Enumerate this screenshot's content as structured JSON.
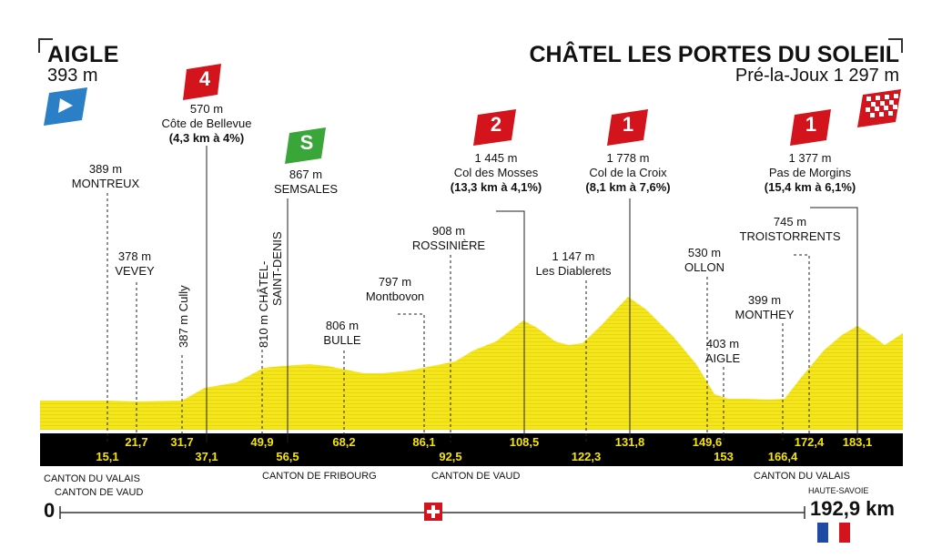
{
  "start": {
    "name": "AIGLE",
    "altitude": "393 m"
  },
  "finish": {
    "name": "CHÂTEL LES PORTES DU SOLEIL",
    "altitude": "Pré-la-Joux 1 297 m"
  },
  "climbs": [
    {
      "category": "4",
      "alt": "570 m",
      "name": "Côte de Bellevue",
      "detail": "(4,3 km à 4%)"
    },
    {
      "category": "2",
      "alt": "1 445 m",
      "name": "Col des Mosses",
      "detail": "(13,3 km à 4,1%)"
    },
    {
      "category": "1",
      "alt": "1 778 m",
      "name": "Col de la Croix",
      "detail": "(8,1 km à 7,6%)"
    },
    {
      "category": "1",
      "alt": "1 377 m",
      "name": "Pas de Morgins",
      "detail": "(15,4 km à 6,1%)"
    }
  ],
  "sprint": {
    "symbol": "S",
    "alt": "867 m",
    "name": "SEMSALES"
  },
  "places": [
    {
      "alt": "389 m",
      "name": "MONTREUX"
    },
    {
      "alt": "378 m",
      "name": "VEVEY"
    },
    {
      "alt": "387 m",
      "name": "Cully"
    },
    {
      "alt": "810 m",
      "name": "CHÂTEL-",
      "name2": "SAINT-DENIS"
    },
    {
      "alt": "806 m",
      "name": "BULLE"
    },
    {
      "alt": "797 m",
      "name": "Montbovon"
    },
    {
      "alt": "908 m",
      "name": "ROSSINIÈRE"
    },
    {
      "alt": "1 147 m",
      "name": "Les Diablerets"
    },
    {
      "alt": "530 m",
      "name": "OLLON"
    },
    {
      "alt": "403 m",
      "name": "AIGLE"
    },
    {
      "alt": "399 m",
      "name": "MONTHEY"
    },
    {
      "alt": "745 m",
      "name": "TROISTORRENTS"
    }
  ],
  "km_top": [
    "21,7",
    "31,7",
    "49,9",
    "68,2",
    "86,1",
    "108,5",
    "131,8",
    "149,6",
    "172,4",
    "183,1"
  ],
  "km_bottom": [
    "15,1",
    "37,1",
    "56,5",
    "92,5",
    "122,3",
    "153",
    "166,4"
  ],
  "cantons": [
    "CANTON DU VALAIS",
    "CANTON DE VAUD",
    "CANTON DE FRIBOURG",
    "CANTON DE VAUD",
    "CANTON DU VALAIS",
    "HAUTE-SAVOIE"
  ],
  "distance_start": "0",
  "distance_total": "192,9 km",
  "colors": {
    "profile": "#f5e61c",
    "band": "#000000",
    "cat_red": "#d4141c",
    "sprint_green": "#3aa538",
    "start_blue": "#2a7fc6"
  }
}
